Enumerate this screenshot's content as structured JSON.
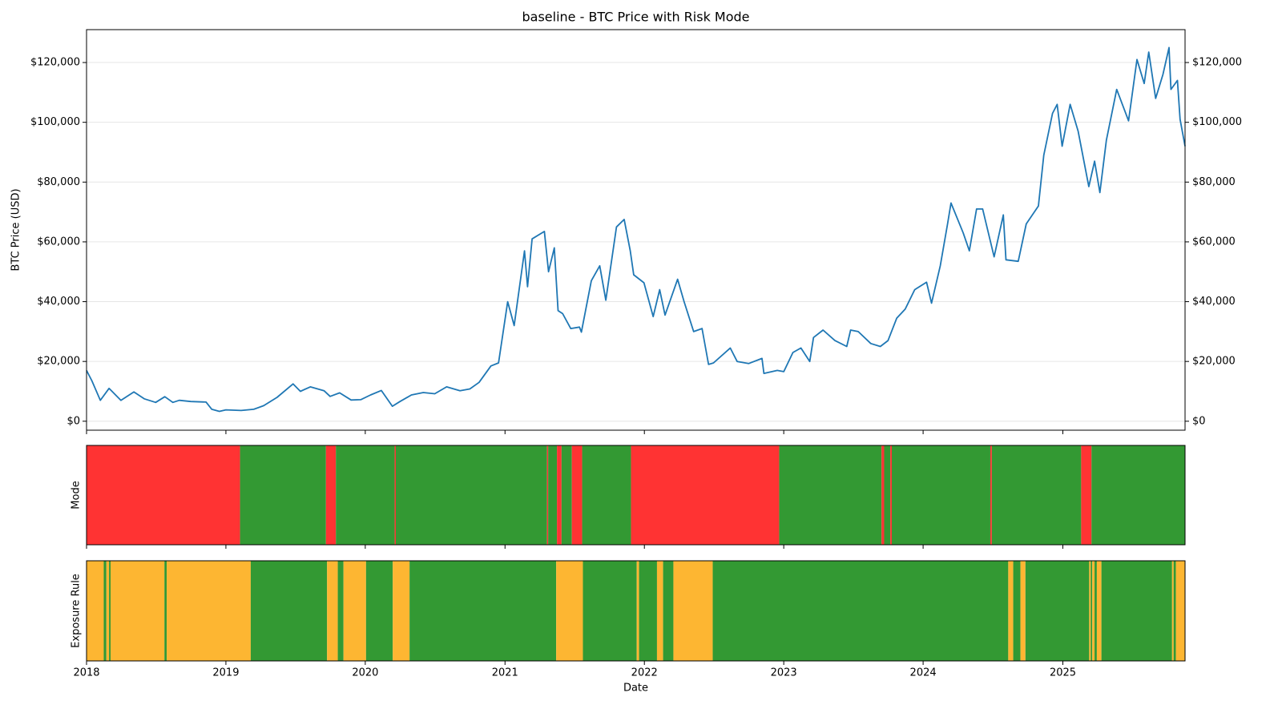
{
  "chart_data": [
    {
      "type": "line",
      "title": "baseline - BTC Price with Risk Mode",
      "ylabel": "BTC Price (USD)",
      "xlim": [
        "2018-01-01",
        "2025-11-17"
      ],
      "ylim": [
        -3000,
        131000
      ],
      "yticks": [
        {
          "value": 0,
          "label": "$0"
        },
        {
          "value": 20000,
          "label": "$20,000"
        },
        {
          "value": 40000,
          "label": "$40,000"
        },
        {
          "value": 60000,
          "label": "$60,000"
        },
        {
          "value": 80000,
          "label": "$80,000"
        },
        {
          "value": 100000,
          "label": "$100,000"
        },
        {
          "value": 120000,
          "label": "$120,000"
        }
      ],
      "xticks": [
        {
          "value": "2018-01-01",
          "label": "2018"
        },
        {
          "value": "2019-01-01",
          "label": "2019"
        },
        {
          "value": "2020-01-01",
          "label": "2020"
        },
        {
          "value": "2021-01-01",
          "label": "2021"
        },
        {
          "value": "2022-01-01",
          "label": "2022"
        },
        {
          "value": "2023-01-01",
          "label": "2023"
        },
        {
          "value": "2024-01-01",
          "label": "2024"
        },
        {
          "value": "2025-01-01",
          "label": "2025"
        }
      ],
      "grid": true,
      "right_axis": true,
      "x": [
        "2018-01-01",
        "2018-01-15",
        "2018-02-06",
        "2018-03-01",
        "2018-04-01",
        "2018-05-05",
        "2018-06-01",
        "2018-07-01",
        "2018-07-25",
        "2018-08-15",
        "2018-09-01",
        "2018-10-01",
        "2018-11-10",
        "2018-11-25",
        "2018-12-15",
        "2019-01-01",
        "2019-02-10",
        "2019-03-15",
        "2019-04-10",
        "2019-05-15",
        "2019-06-26",
        "2019-07-15",
        "2019-08-10",
        "2019-09-15",
        "2019-10-01",
        "2019-10-26",
        "2019-11-25",
        "2019-12-20",
        "2020-01-15",
        "2020-02-12",
        "2020-03-12",
        "2020-04-01",
        "2020-05-01",
        "2020-06-01",
        "2020-07-01",
        "2020-08-01",
        "2020-09-05",
        "2020-10-01",
        "2020-10-25",
        "2020-11-25",
        "2020-12-15",
        "2021-01-08",
        "2021-01-25",
        "2021-02-21",
        "2021-03-01",
        "2021-03-13",
        "2021-04-14",
        "2021-04-25",
        "2021-05-10",
        "2021-05-20",
        "2021-06-01",
        "2021-06-22",
        "2021-07-15",
        "2021-07-20",
        "2021-08-15",
        "2021-09-06",
        "2021-09-22",
        "2021-10-20",
        "2021-11-09",
        "2021-11-25",
        "2021-12-04",
        "2021-12-31",
        "2022-01-24",
        "2022-02-10",
        "2022-02-24",
        "2022-03-29",
        "2022-04-15",
        "2022-05-10",
        "2022-06-01",
        "2022-06-18",
        "2022-07-01",
        "2022-08-14",
        "2022-09-01",
        "2022-10-01",
        "2022-11-05",
        "2022-11-10",
        "2022-12-15",
        "2023-01-01",
        "2023-01-25",
        "2023-02-15",
        "2023-03-10",
        "2023-03-20",
        "2023-04-14",
        "2023-05-15",
        "2023-06-15",
        "2023-06-25",
        "2023-07-15",
        "2023-08-17",
        "2023-09-11",
        "2023-10-01",
        "2023-10-24",
        "2023-11-15",
        "2023-12-10",
        "2024-01-10",
        "2024-01-23",
        "2024-02-15",
        "2024-03-05",
        "2024-03-14",
        "2024-04-15",
        "2024-05-01",
        "2024-05-20",
        "2024-06-05",
        "2024-07-05",
        "2024-07-29",
        "2024-08-05",
        "2024-09-06",
        "2024-09-27",
        "2024-10-29",
        "2024-11-12",
        "2024-12-05",
        "2024-12-17",
        "2024-12-30",
        "2025-01-20",
        "2025-02-10",
        "2025-03-10",
        "2025-03-25",
        "2025-04-08",
        "2025-04-25",
        "2025-05-22",
        "2025-06-22",
        "2025-07-14",
        "2025-08-02",
        "2025-08-14",
        "2025-09-01",
        "2025-09-20",
        "2025-10-06",
        "2025-10-11",
        "2025-10-28",
        "2025-11-04",
        "2025-11-17"
      ],
      "series": [
        {
          "color": "#1f77b4",
          "values": [
            17000,
            13500,
            7000,
            11000,
            7000,
            9800,
            7500,
            6300,
            8200,
            6300,
            7000,
            6600,
            6400,
            4000,
            3300,
            3800,
            3600,
            4000,
            5200,
            8000,
            12500,
            10000,
            11500,
            10200,
            8300,
            9500,
            7100,
            7200,
            8800,
            10300,
            5000,
            6600,
            8800,
            9600,
            9200,
            11500,
            10200,
            10800,
            13000,
            18500,
            19500,
            40000,
            32000,
            57000,
            45000,
            61000,
            63500,
            50000,
            58000,
            37000,
            36000,
            31000,
            31500,
            29800,
            47000,
            52000,
            40500,
            65000,
            67500,
            57000,
            49000,
            46300,
            35000,
            44000,
            35500,
            47500,
            40000,
            30000,
            31000,
            19000,
            19500,
            24500,
            20000,
            19300,
            21000,
            16000,
            17000,
            16600,
            23000,
            24500,
            20000,
            28000,
            30500,
            27000,
            25000,
            30500,
            30000,
            26000,
            25000,
            27000,
            34500,
            37500,
            44000,
            46500,
            39500,
            52000,
            66000,
            73000,
            63000,
            57000,
            71000,
            71000,
            55000,
            69000,
            54000,
            53500,
            66000,
            72000,
            89000,
            103000,
            106000,
            92000,
            106000,
            97000,
            78500,
            87000,
            76500,
            94000,
            111000,
            100500,
            121000,
            113000,
            123500,
            108000,
            116000,
            125000,
            111000,
            114000,
            101000,
            92000
          ]
        }
      ]
    },
    {
      "type": "timeline",
      "ylabel": "Mode",
      "xlim": [
        "2018-01-01",
        "2025-11-17"
      ],
      "segments": [
        [
          "2018-01-01",
          "2019-02-07",
          "#ff3333"
        ],
        [
          "2019-02-07",
          "2019-09-20",
          "#339933"
        ],
        [
          "2019-09-20",
          "2019-10-16",
          "#ff3333"
        ],
        [
          "2019-10-16",
          "2020-03-18",
          "#339933"
        ],
        [
          "2020-03-18",
          "2020-03-21",
          "#ff3333"
        ],
        [
          "2020-03-21",
          "2021-04-21",
          "#339933"
        ],
        [
          "2021-04-21",
          "2021-04-24",
          "#ff3333"
        ],
        [
          "2021-04-24",
          "2021-05-17",
          "#339933"
        ],
        [
          "2021-05-17",
          "2021-05-29",
          "#ff3333"
        ],
        [
          "2021-05-29",
          "2021-06-25",
          "#339933"
        ],
        [
          "2021-06-25",
          "2021-07-22",
          "#ff3333"
        ],
        [
          "2021-07-22",
          "2021-11-27",
          "#339933"
        ],
        [
          "2021-11-27",
          "2022-12-20",
          "#ff3333"
        ],
        [
          "2022-12-20",
          "2023-09-14",
          "#339933"
        ],
        [
          "2023-09-14",
          "2023-09-21",
          "#ff3333"
        ],
        [
          "2023-09-21",
          "2023-10-07",
          "#339933"
        ],
        [
          "2023-10-07",
          "2023-10-11",
          "#ff3333"
        ],
        [
          "2023-10-11",
          "2024-06-25",
          "#339933"
        ],
        [
          "2024-06-25",
          "2024-06-29",
          "#ff3333"
        ],
        [
          "2024-06-29",
          "2025-02-18",
          "#339933"
        ],
        [
          "2025-02-18",
          "2025-03-17",
          "#ff3333"
        ],
        [
          "2025-03-17",
          "2025-11-17",
          "#339933"
        ]
      ]
    },
    {
      "type": "timeline",
      "ylabel": "Exposure Rule",
      "xlabel": "Date",
      "xlim": [
        "2018-01-01",
        "2025-11-17"
      ],
      "segments": [
        [
          "2018-01-01",
          "2018-02-15",
          "#fdb632"
        ],
        [
          "2018-02-15",
          "2018-02-22",
          "#339933"
        ],
        [
          "2018-02-22",
          "2018-03-01",
          "#fdb632"
        ],
        [
          "2018-03-01",
          "2018-03-05",
          "#339933"
        ],
        [
          "2018-03-05",
          "2018-07-24",
          "#fdb632"
        ],
        [
          "2018-07-24",
          "2018-07-30",
          "#339933"
        ],
        [
          "2018-07-30",
          "2019-03-07",
          "#fdb632"
        ],
        [
          "2019-03-07",
          "2019-09-23",
          "#339933"
        ],
        [
          "2019-09-23",
          "2019-10-21",
          "#fdb632"
        ],
        [
          "2019-10-21",
          "2019-11-05",
          "#339933"
        ],
        [
          "2019-11-05",
          "2020-01-03",
          "#fdb632"
        ],
        [
          "2020-01-03",
          "2020-03-13",
          "#339933"
        ],
        [
          "2020-03-13",
          "2020-04-26",
          "#fdb632"
        ],
        [
          "2020-04-26",
          "2021-05-15",
          "#339933"
        ],
        [
          "2021-05-15",
          "2021-07-24",
          "#fdb632"
        ],
        [
          "2021-07-24",
          "2021-12-12",
          "#339933"
        ],
        [
          "2021-12-12",
          "2021-12-18",
          "#fdb632"
        ],
        [
          "2021-12-18",
          "2022-02-03",
          "#339933"
        ],
        [
          "2022-02-03",
          "2022-02-19",
          "#fdb632"
        ],
        [
          "2022-02-19",
          "2022-03-18",
          "#339933"
        ],
        [
          "2022-03-18",
          "2022-06-29",
          "#fdb632"
        ],
        [
          "2022-06-29",
          "2024-08-11",
          "#339933"
        ],
        [
          "2024-08-11",
          "2024-08-24",
          "#fdb632"
        ],
        [
          "2024-08-24",
          "2024-09-12",
          "#339933"
        ],
        [
          "2024-09-12",
          "2024-09-25",
          "#fdb632"
        ],
        [
          "2024-09-25",
          "2025-03-11",
          "#339933"
        ],
        [
          "2025-03-11",
          "2025-03-15",
          "#fdb632"
        ],
        [
          "2025-03-15",
          "2025-03-19",
          "#339933"
        ],
        [
          "2025-03-19",
          "2025-03-25",
          "#fdb632"
        ],
        [
          "2025-03-25",
          "2025-03-31",
          "#339933"
        ],
        [
          "2025-03-31",
          "2025-04-12",
          "#fdb632"
        ],
        [
          "2025-04-12",
          "2025-10-14",
          "#339933"
        ],
        [
          "2025-10-14",
          "2025-10-18",
          "#fdb632"
        ],
        [
          "2025-10-18",
          "2025-10-24",
          "#339933"
        ],
        [
          "2025-10-24",
          "2025-11-17",
          "#fdb632"
        ]
      ]
    }
  ]
}
